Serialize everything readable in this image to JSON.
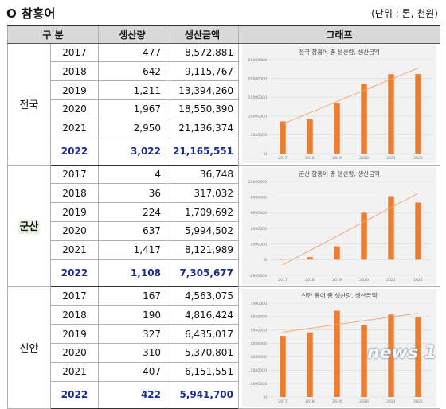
{
  "title": "O  참홍어",
  "unit": "(단위 : 톤, 천원)",
  "headers": {
    "division": "구    분",
    "production": "생산량",
    "amount": "생산금액",
    "graph": "그래프"
  },
  "groups": [
    {
      "region": "전국",
      "rows": [
        {
          "year": "2017",
          "production": "477",
          "amount": "8,572,881"
        },
        {
          "year": "2018",
          "production": "642",
          "amount": "9,115,767"
        },
        {
          "year": "2019",
          "production": "1,211",
          "amount": "13,394,260"
        },
        {
          "year": "2020",
          "production": "1,967",
          "amount": "18,550,390"
        },
        {
          "year": "2021",
          "production": "2,950",
          "amount": "21,136,374"
        },
        {
          "year": "2022",
          "production": "3,022",
          "amount": "21,165,551"
        }
      ]
    },
    {
      "region": "군산",
      "rows": [
        {
          "year": "2017",
          "production": "4",
          "amount": "36,748"
        },
        {
          "year": "2018",
          "production": "36",
          "amount": "317,032"
        },
        {
          "year": "2019",
          "production": "224",
          "amount": "1,709,692"
        },
        {
          "year": "2020",
          "production": "637",
          "amount": "5,994,502"
        },
        {
          "year": "2021",
          "production": "1,417",
          "amount": "8,121,989"
        },
        {
          "year": "2022",
          "production": "1,108",
          "amount": "7,305,677"
        }
      ]
    },
    {
      "region": "신안",
      "rows": [
        {
          "year": "2017",
          "production": "167",
          "amount": "4,563,075"
        },
        {
          "year": "2018",
          "production": "190",
          "amount": "4,816,424"
        },
        {
          "year": "2019",
          "production": "327",
          "amount": "6,435,017"
        },
        {
          "year": "2020",
          "production": "310",
          "amount": "5,370,801"
        },
        {
          "year": "2021",
          "production": "407",
          "amount": "6,151,551"
        },
        {
          "year": "2022",
          "production": "422",
          "amount": "5,941,700"
        }
      ]
    }
  ],
  "chart_data": [
    {
      "type": "bar",
      "title": "전국 참홍어 총 생산량, 생산금액",
      "categories": [
        "2017",
        "2018",
        "2019",
        "2020",
        "2021",
        "2022"
      ],
      "values": [
        8572881,
        9115767,
        13394260,
        18550390,
        21136374,
        21165551
      ],
      "trendline": true,
      "ylim": [
        0,
        25000000
      ],
      "yticks": [
        0,
        5000000,
        10000000,
        15000000,
        20000000,
        25000000
      ],
      "ytick_labels": [
        "0",
        "5000000",
        "10000000",
        "15000000",
        "20000000",
        "25000000"
      ],
      "bar_color": "#ed7d31"
    },
    {
      "type": "bar",
      "title": "군산 참홍어 총 생산량, 생산금액",
      "categories": [
        "2017",
        "2018",
        "2019",
        "2020",
        "2021",
        "2022"
      ],
      "values": [
        36748,
        317032,
        1709692,
        5994502,
        8121989,
        7305677
      ],
      "trendline": true,
      "ylim": [
        -2000000,
        10000000
      ],
      "yticks": [
        -2000000,
        0,
        2000000,
        4000000,
        6000000,
        8000000,
        10000000
      ],
      "ytick_labels": [
        "-2000000",
        "0",
        "2000000",
        "4000000",
        "6000000",
        "8000000",
        "10000000"
      ],
      "bar_color": "#ed7d31"
    },
    {
      "type": "bar",
      "title": "신안 홍어 총 생산량, 생산금액",
      "categories": [
        "2017",
        "2018",
        "2019",
        "2020",
        "2021",
        "2022"
      ],
      "values": [
        4563075,
        4816424,
        6435017,
        5370801,
        6151551,
        5941700
      ],
      "trendline": true,
      "ylim": [
        0,
        7000000
      ],
      "yticks": [
        0,
        1000000,
        2000000,
        3000000,
        4000000,
        5000000,
        6000000,
        7000000
      ],
      "ytick_labels": [
        "0",
        "1000000",
        "2000000",
        "3000000",
        "4000000",
        "5000000",
        "6000000",
        "7000000"
      ],
      "bar_color": "#ed7d31"
    }
  ],
  "watermark": "news 1"
}
